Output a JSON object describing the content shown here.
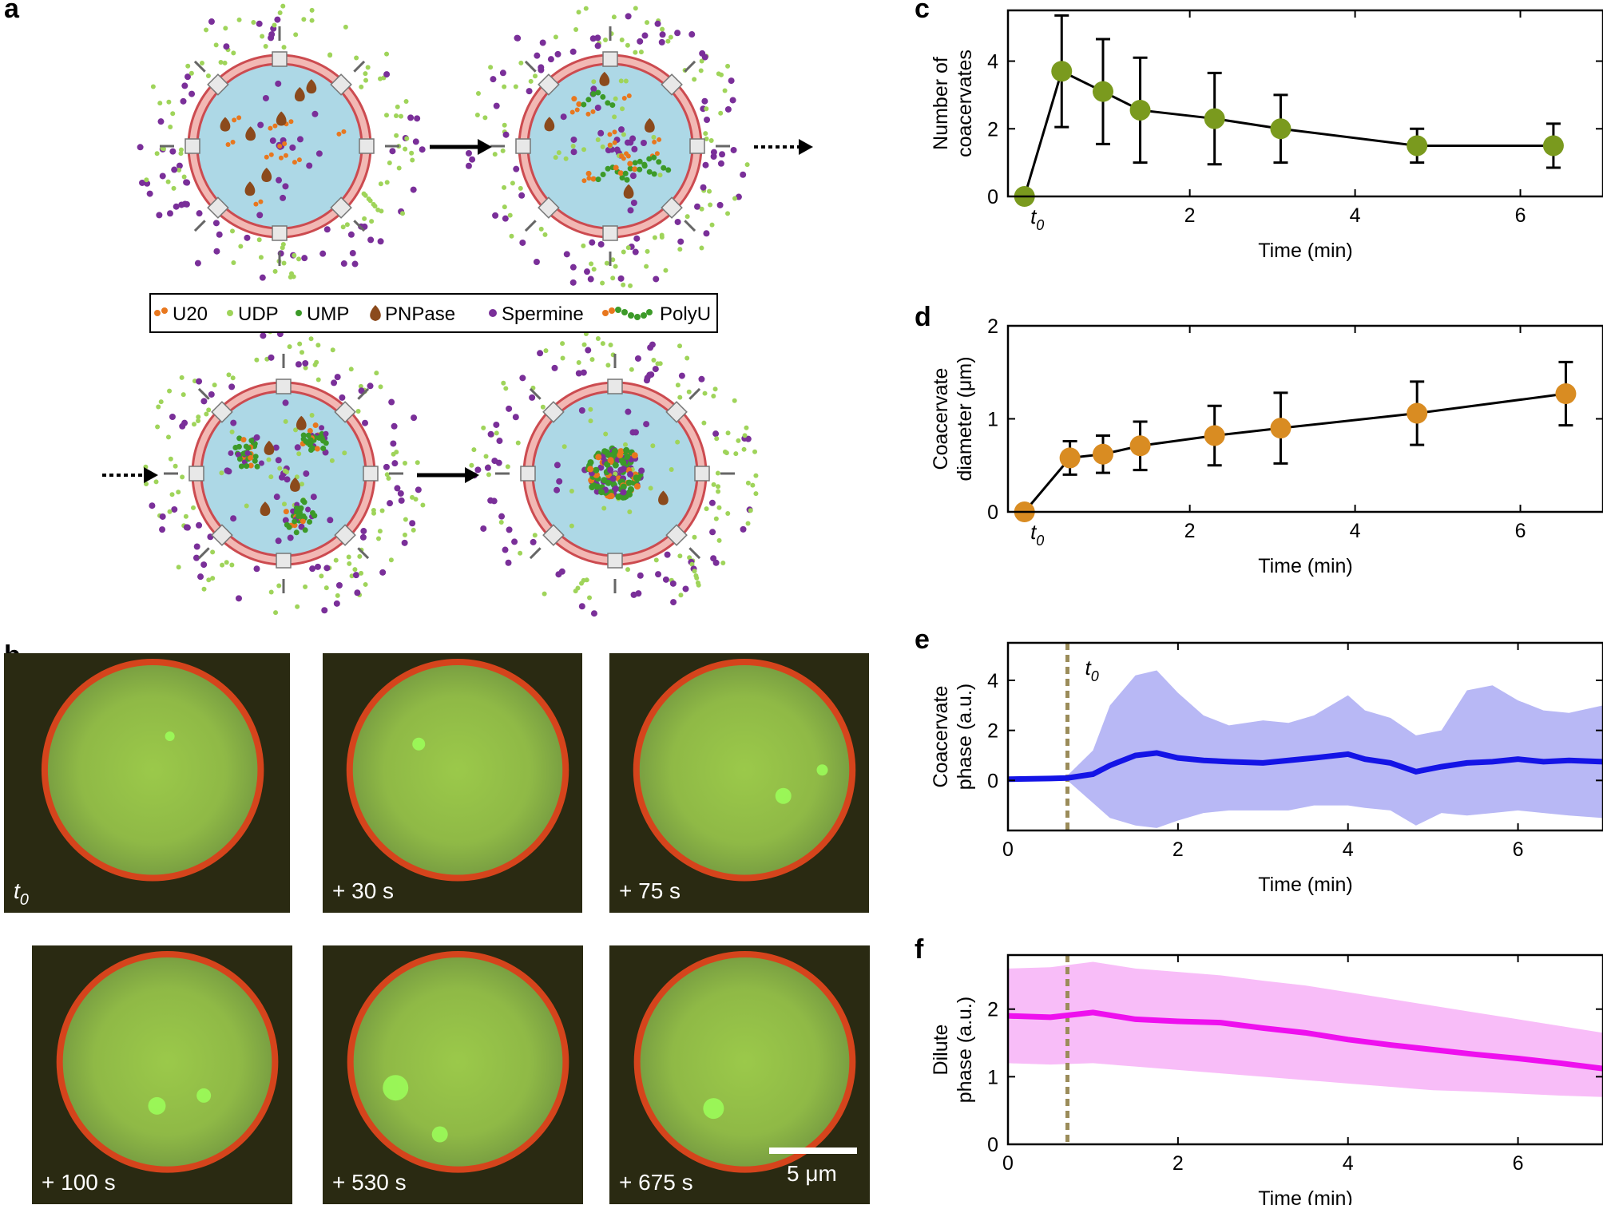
{
  "panel_labels": {
    "a": "a",
    "b": "b",
    "c": "c",
    "d": "d",
    "e": "e",
    "f": "f"
  },
  "legend": {
    "items": [
      {
        "label": "U20",
        "icon": "u20-icon",
        "color": "#e8771e"
      },
      {
        "label": "UDP",
        "icon": "udp-icon",
        "color": "#9fd45a"
      },
      {
        "label": "UMP",
        "icon": "ump-icon",
        "color": "#3c9a28"
      },
      {
        "label": "PNPase",
        "icon": "pnpase-icon",
        "color": "#8b4a1c"
      },
      {
        "label": "Spermine",
        "icon": "spermine-icon",
        "color": "#7a2f99"
      },
      {
        "label": "PolyU",
        "icon": "polyu-icon",
        "color": "#3c9a28"
      }
    ]
  },
  "micrographs": {
    "labels": [
      "t0",
      "+ 30 s",
      "+ 75 s",
      "+ 100 s",
      "+ 530 s",
      "+ 675 s"
    ],
    "scale_bar": "5 μm"
  },
  "colors": {
    "green_marker": "#7a9a1e",
    "orange_marker": "#d98c22",
    "blue_line": "#1414e6",
    "blue_band": "#b8b8f5",
    "magenta_line": "#ee10ee",
    "magenta_band": "#f8bdf8",
    "t0_line": "#9b8c5a"
  },
  "t0_label": "t",
  "t0_sub": "0",
  "chart_data": [
    {
      "id": "c",
      "type": "line",
      "title": "",
      "xlabel": "Time (min)",
      "ylabel": [
        "Number of",
        "coacervates"
      ],
      "xlim": [
        -0.2,
        7
      ],
      "ylim": [
        0,
        5.5
      ],
      "xticks": [
        2,
        4,
        6
      ],
      "yticks": [
        0,
        2,
        4
      ],
      "series": [
        {
          "name": "coacervates",
          "x": [
            0,
            0.45,
            0.95,
            1.4,
            2.3,
            3.1,
            4.75,
            6.4
          ],
          "y": [
            0,
            3.7,
            3.1,
            2.55,
            2.3,
            2.0,
            1.5,
            1.5
          ],
          "err": [
            0,
            1.65,
            1.55,
            1.55,
            1.35,
            1.0,
            0.5,
            0.65
          ]
        }
      ]
    },
    {
      "id": "d",
      "type": "line",
      "title": "",
      "xlabel": "Time (min)",
      "ylabel": [
        "Coacervate",
        "diameter (μm)"
      ],
      "xlim": [
        -0.2,
        7
      ],
      "ylim": [
        0,
        2
      ],
      "xticks": [
        2,
        4,
        6
      ],
      "yticks": [
        0,
        1,
        2
      ],
      "series": [
        {
          "name": "diameter",
          "x": [
            0,
            0.55,
            0.95,
            1.4,
            2.3,
            3.1,
            4.75,
            6.55
          ],
          "y": [
            0,
            0.58,
            0.62,
            0.71,
            0.82,
            0.9,
            1.06,
            1.27
          ],
          "err": [
            0,
            0.18,
            0.2,
            0.26,
            0.32,
            0.38,
            0.34,
            0.34
          ]
        }
      ]
    },
    {
      "id": "e",
      "type": "area",
      "title": "",
      "xlabel": "Time (min)",
      "ylabel": [
        "Coacervate",
        "phase (a.u.)"
      ],
      "xlim": [
        0,
        7
      ],
      "ylim": [
        -2,
        5.5
      ],
      "xticks": [
        0,
        2,
        4,
        6
      ],
      "yticks": [
        0,
        2,
        4
      ],
      "t0": 0.7,
      "series": [
        {
          "name": "coacervate phase",
          "x": [
            0,
            0.5,
            0.7,
            1.0,
            1.2,
            1.5,
            1.75,
            2.0,
            2.3,
            2.6,
            3.0,
            3.3,
            3.6,
            4.0,
            4.2,
            4.5,
            4.8,
            5.1,
            5.4,
            5.7,
            6.0,
            6.3,
            6.6,
            7.0
          ],
          "y": [
            0.05,
            0.08,
            0.1,
            0.25,
            0.6,
            1.0,
            1.1,
            0.9,
            0.8,
            0.75,
            0.7,
            0.8,
            0.9,
            1.05,
            0.85,
            0.7,
            0.35,
            0.55,
            0.7,
            0.75,
            0.85,
            0.75,
            0.8,
            0.75
          ],
          "upper": [
            0.1,
            0.1,
            0.2,
            1.2,
            3.0,
            4.2,
            4.4,
            3.5,
            2.6,
            2.2,
            2.4,
            2.3,
            2.6,
            3.4,
            2.8,
            2.5,
            1.8,
            2.0,
            3.6,
            3.8,
            3.2,
            2.8,
            2.7,
            3.0
          ],
          "lower": [
            0.0,
            0.05,
            0.0,
            -0.9,
            -1.5,
            -1.8,
            -1.9,
            -1.6,
            -1.3,
            -1.2,
            -1.2,
            -1.2,
            -1.0,
            -1.0,
            -1.1,
            -1.2,
            -1.8,
            -1.3,
            -1.4,
            -1.3,
            -1.2,
            -1.3,
            -1.4,
            -1.5
          ]
        }
      ]
    },
    {
      "id": "f",
      "type": "area",
      "title": "",
      "xlabel": "Time (min)",
      "ylabel": [
        "Dilute",
        "phase (a.u.)"
      ],
      "xlim": [
        0,
        7
      ],
      "ylim": [
        0,
        2.8
      ],
      "xticks": [
        0,
        2,
        4,
        6
      ],
      "yticks": [
        0,
        1,
        2
      ],
      "t0": 0.7,
      "series": [
        {
          "name": "dilute phase",
          "x": [
            0,
            0.5,
            1.0,
            1.5,
            2.0,
            2.5,
            3.0,
            3.5,
            4.0,
            4.5,
            5.0,
            5.5,
            6.0,
            6.5,
            7.0
          ],
          "y": [
            1.9,
            1.88,
            1.95,
            1.85,
            1.82,
            1.8,
            1.72,
            1.65,
            1.55,
            1.47,
            1.4,
            1.33,
            1.27,
            1.2,
            1.12
          ],
          "upper": [
            2.6,
            2.62,
            2.7,
            2.6,
            2.55,
            2.5,
            2.42,
            2.35,
            2.25,
            2.15,
            2.05,
            1.95,
            1.85,
            1.75,
            1.65
          ],
          "lower": [
            1.2,
            1.18,
            1.2,
            1.15,
            1.1,
            1.05,
            1.0,
            0.95,
            0.9,
            0.85,
            0.8,
            0.78,
            0.75,
            0.72,
            0.7
          ]
        }
      ]
    }
  ]
}
